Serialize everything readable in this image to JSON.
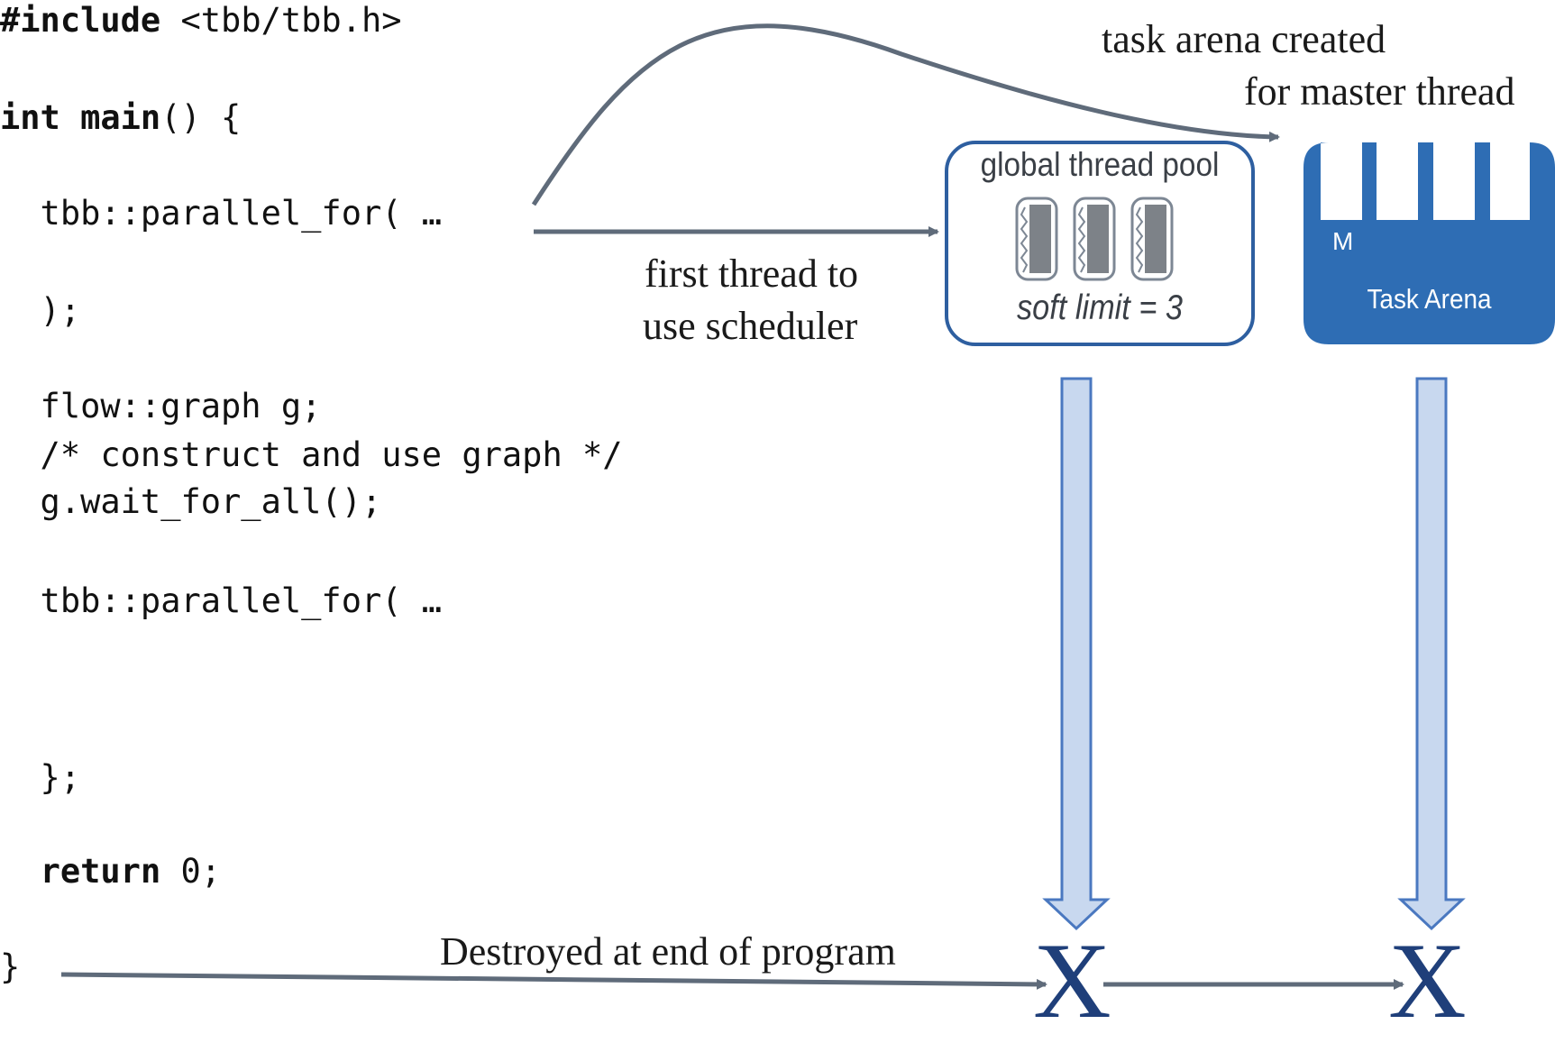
{
  "code": {
    "include_kw": "#include",
    "include_rest": " <tbb/tbb.h>",
    "int_kw": "int",
    "main_kw": "main",
    "main_rest": "() {",
    "pfor1": "  tbb::parallel_for( …",
    "close_paren": "  );",
    "graph_decl": "  flow::graph g;",
    "graph_comment": "  /* construct and use graph */",
    "wait_all": "  g.wait_for_all();",
    "pfor2": "  tbb::parallel_for( …",
    "close_brace_semi": "  };",
    "return_kw": "return",
    "return_rest": " 0;",
    "end_brace": "}"
  },
  "labels": {
    "task_arena_created": "task arena created",
    "for_master_thread": "for master thread",
    "first_thread_1": "first thread to",
    "first_thread_2": "use scheduler",
    "destroyed": "Destroyed at end of program"
  },
  "pool": {
    "title": "global thread pool",
    "soft_limit": "soft limit = 3"
  },
  "arena": {
    "master_label": "M",
    "title": "Task Arena"
  },
  "marks": {
    "x_pool": "X",
    "x_arena": "X"
  },
  "colors": {
    "arrow_gray": "#5f6b7a",
    "arena_blue": "#2e6db4",
    "pool_border": "#2e5fa0",
    "down_arrow_fill": "#c8d8ef",
    "down_arrow_stroke": "#4a78c0",
    "x_color": "#1f3f7a"
  }
}
